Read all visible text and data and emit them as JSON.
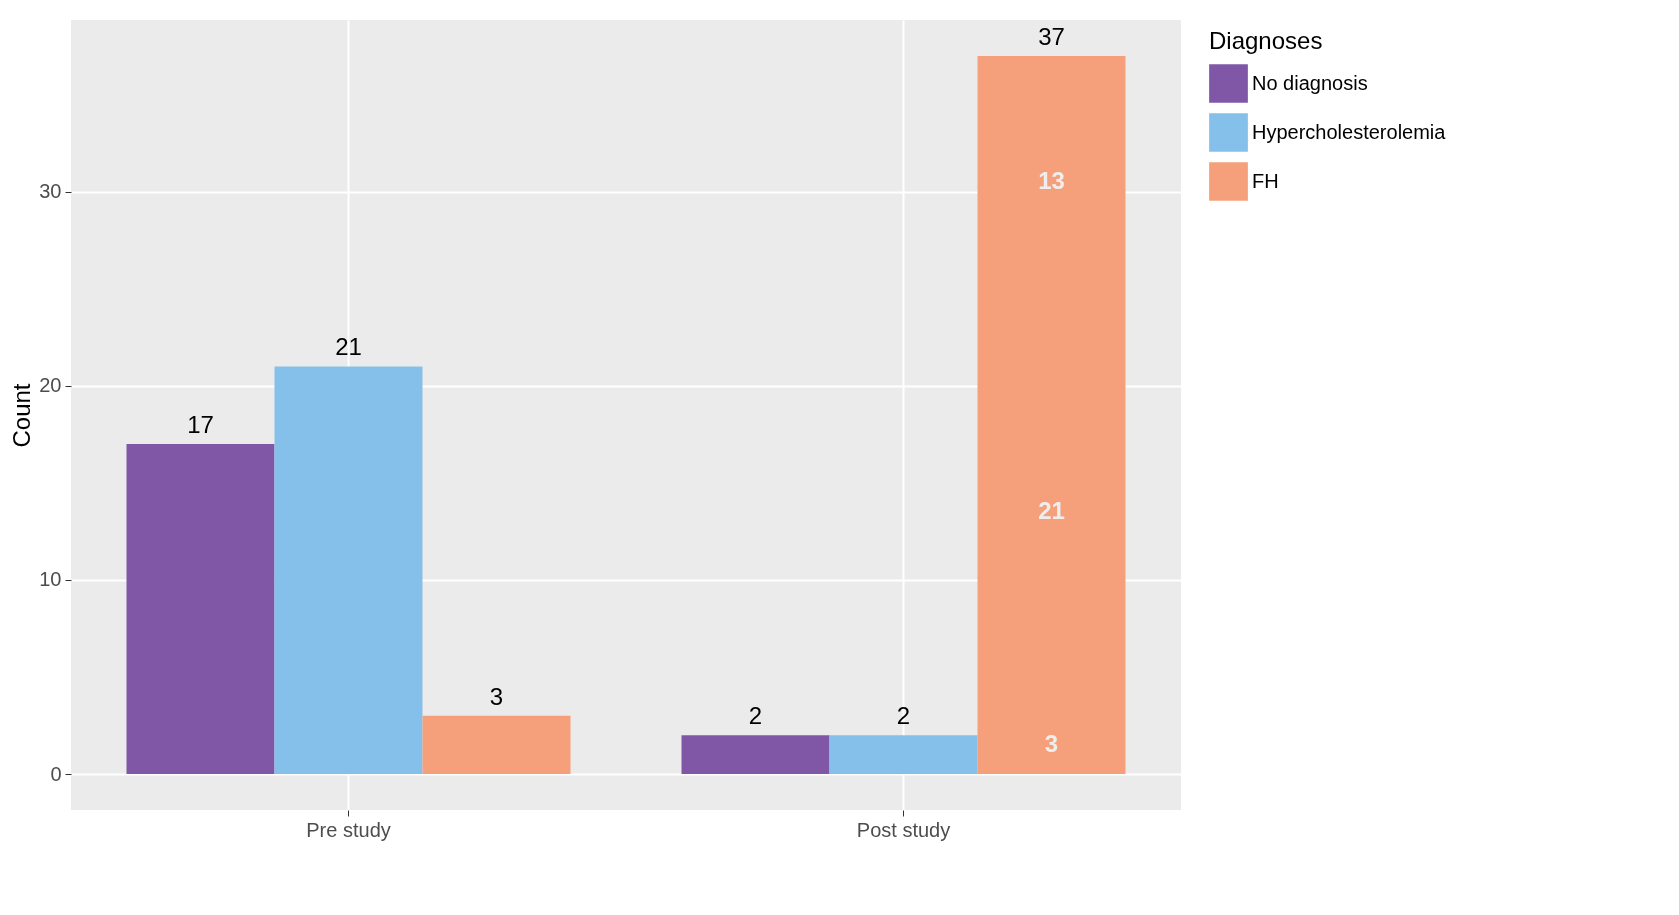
{
  "chart_data": {
    "type": "bar",
    "ylabel": "Count",
    "legend_title": "Diagnoses",
    "legend": "right",
    "grid": true,
    "categories": [
      "Pre study",
      "Post study"
    ],
    "series": [
      {
        "name": "No diagnosis",
        "color": "#7f57a6",
        "values": [
          17,
          2
        ]
      },
      {
        "name": "Hypercholesterolemia",
        "color": "#85c0ea",
        "values": [
          21,
          2
        ]
      },
      {
        "name": "FH",
        "color": "#f5a07a",
        "values": [
          3,
          37
        ]
      }
    ],
    "ylim": [
      -1.85,
      38.85
    ],
    "yticks": [
      0,
      10,
      20,
      30
    ],
    "data_labels": true,
    "annotations": [
      "3",
      "21",
      "13"
    ]
  }
}
